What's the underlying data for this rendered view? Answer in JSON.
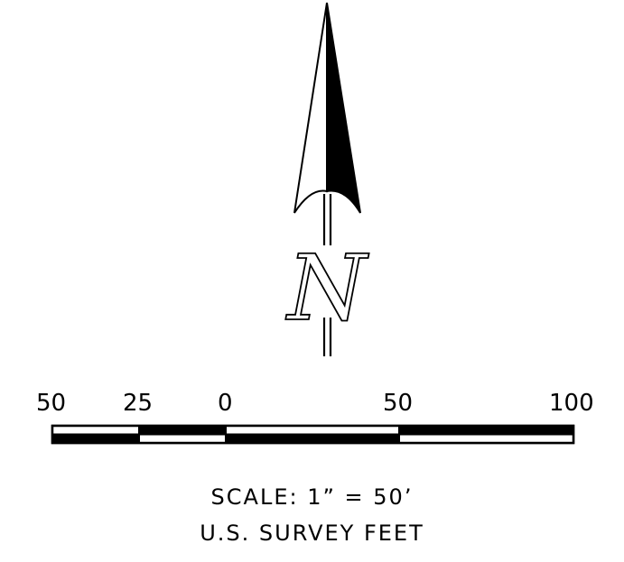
{
  "north_arrow": {
    "letter": "N",
    "icon": "north-arrow-icon"
  },
  "scale_bar": {
    "labels": [
      "50",
      "25",
      "0",
      "50",
      "100"
    ]
  },
  "scale_text": {
    "ratio": "SCALE:  1”  =  50’",
    "units": "U.S.  SURVEY  FEET"
  },
  "colors": {
    "ink": "#000000",
    "paper": "#ffffff"
  }
}
